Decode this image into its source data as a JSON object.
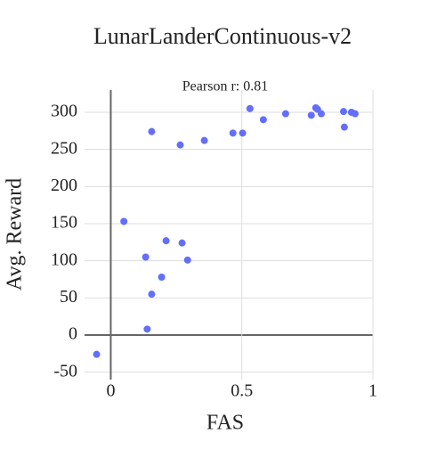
{
  "chart_data": {
    "type": "scatter",
    "title": "LunarLanderContinuous-v2",
    "annotation": "Pearson r: 0.81",
    "x_label": "FAS",
    "y_label": "Avg. Reward",
    "x": [
      -0.054,
      0.05,
      0.133,
      0.139,
      0.156,
      0.156,
      0.211,
      0.194,
      0.272,
      0.293,
      0.265,
      0.357,
      0.466,
      0.503,
      0.531,
      0.582,
      0.667,
      0.765,
      0.782,
      0.789,
      0.803,
      0.888,
      0.891,
      0.918,
      0.932
    ],
    "series": [
      {
        "color": "#636efa",
        "values": [
          -26,
          153,
          105,
          8,
          55,
          274,
          127,
          78,
          124,
          101,
          256,
          262,
          272,
          272,
          305,
          290,
          298,
          296,
          306,
          304,
          298,
          301,
          280,
          300,
          298
        ]
      }
    ],
    "xlim": [
      -0.1,
      1
    ],
    "ylim": [
      -60,
      330
    ],
    "xticks": [
      0,
      0.5,
      1
    ],
    "yticks": [
      -50,
      0,
      50,
      100,
      150,
      200,
      250,
      300
    ],
    "grid": true
  }
}
